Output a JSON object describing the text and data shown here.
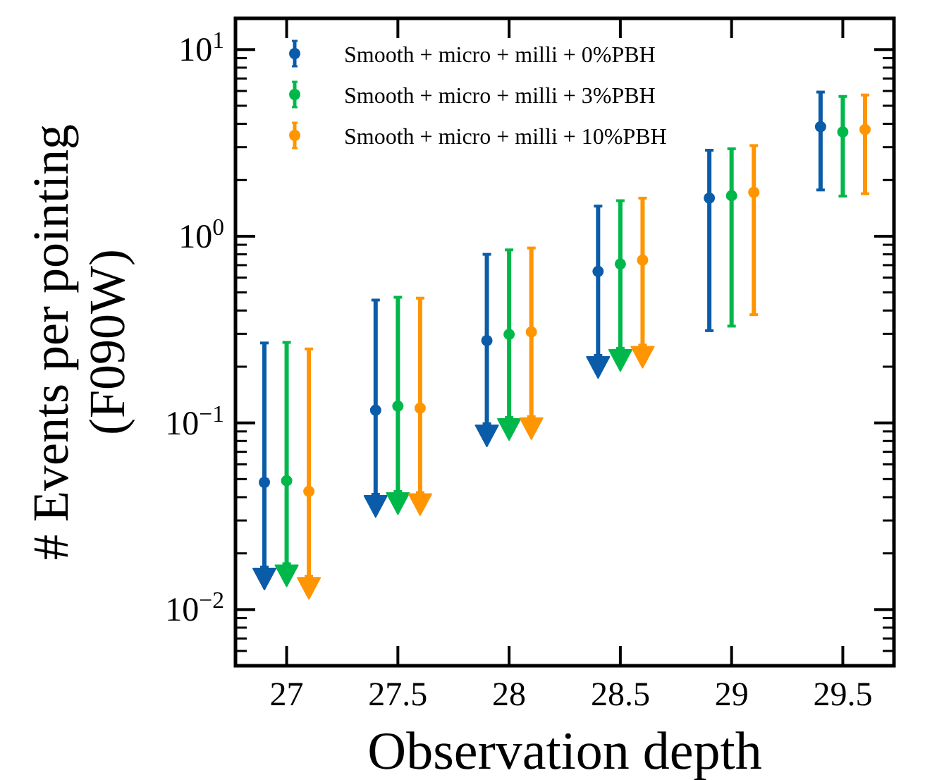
{
  "chart_data": {
    "type": "scatter",
    "xlabel": "Observation depth",
    "ylabel": "# Events per pointing\n(F090W)",
    "log": "y",
    "xlim": [
      26.77,
      29.73
    ],
    "xticks": [
      27,
      27.5,
      28,
      28.5,
      29,
      29.5
    ],
    "ylim": [
      0.005,
      14.7
    ],
    "yticks": [
      {
        "value": 0.01,
        "label": "10$^{−2}$"
      },
      {
        "value": 0.1,
        "label": "10$^{−1}$"
      },
      {
        "value": 1,
        "label": "10$^{0}$"
      },
      {
        "value": 10,
        "label": "10$^{1}$"
      }
    ],
    "marker": "circle",
    "legend": "top left",
    "grid": false,
    "series": [
      {
        "name": "Smooth + micro + milli + 0%PBH",
        "color": "#0a5ca8",
        "x": [
          26.9,
          27.4,
          27.9,
          28.4,
          28.9,
          29.4
        ],
        "values": [
          0.048,
          0.117,
          0.276,
          0.648,
          1.6,
          3.86
        ],
        "errors": [
          [
            0.0169,
            0.268
          ],
          [
            0.0414,
            0.455
          ],
          [
            0.099,
            0.8
          ],
          [
            0.23,
            1.45
          ],
          [
            0.312,
            2.89
          ],
          [
            1.77,
            5.92
          ]
        ]
      },
      {
        "name": "Smooth + micro + milli + 3%PBH",
        "color": "#00b84a",
        "x": [
          27.0,
          27.5,
          28.0,
          28.5,
          29.0,
          29.5
        ],
        "values": [
          0.049,
          0.123,
          0.298,
          0.71,
          1.65,
          3.62
        ],
        "errors": [
          [
            0.0176,
            0.27
          ],
          [
            0.0429,
            0.471
          ],
          [
            0.107,
            0.845
          ],
          [
            0.251,
            1.55
          ],
          [
            0.33,
            2.94
          ],
          [
            1.64,
            5.61
          ]
        ]
      },
      {
        "name": "Smooth + micro + milli + 10%PBH",
        "color": "#ff9500",
        "x": [
          27.1,
          27.6,
          28.1,
          28.6,
          29.1,
          29.6
        ],
        "values": [
          0.043,
          0.12,
          0.307,
          0.744,
          1.72,
          3.73
        ],
        "errors": [
          [
            0.0151,
            0.249
          ],
          [
            0.0423,
            0.466
          ],
          [
            0.108,
            0.865
          ],
          [
            0.261,
            1.6
          ],
          [
            0.38,
            3.06
          ],
          [
            1.69,
            5.71
          ]
        ]
      },
      {
        "color": "#0a5ca8",
        "marker": "triangle",
        "x": [
          26.9,
          27.4,
          27.9,
          28.4
        ],
        "values": [
          0.0147,
          0.036,
          0.086,
          0.2
        ]
      },
      {
        "color": "#00b84a",
        "marker": "triangle",
        "x": [
          27.0,
          27.5,
          28.0,
          28.5
        ],
        "values": [
          0.0153,
          0.0373,
          0.093,
          0.218
        ]
      },
      {
        "color": "#ff9500",
        "marker": "triangle",
        "x": [
          27.1,
          27.6,
          28.1,
          28.6
        ],
        "values": [
          0.0131,
          0.0368,
          0.094,
          0.227
        ]
      }
    ]
  }
}
